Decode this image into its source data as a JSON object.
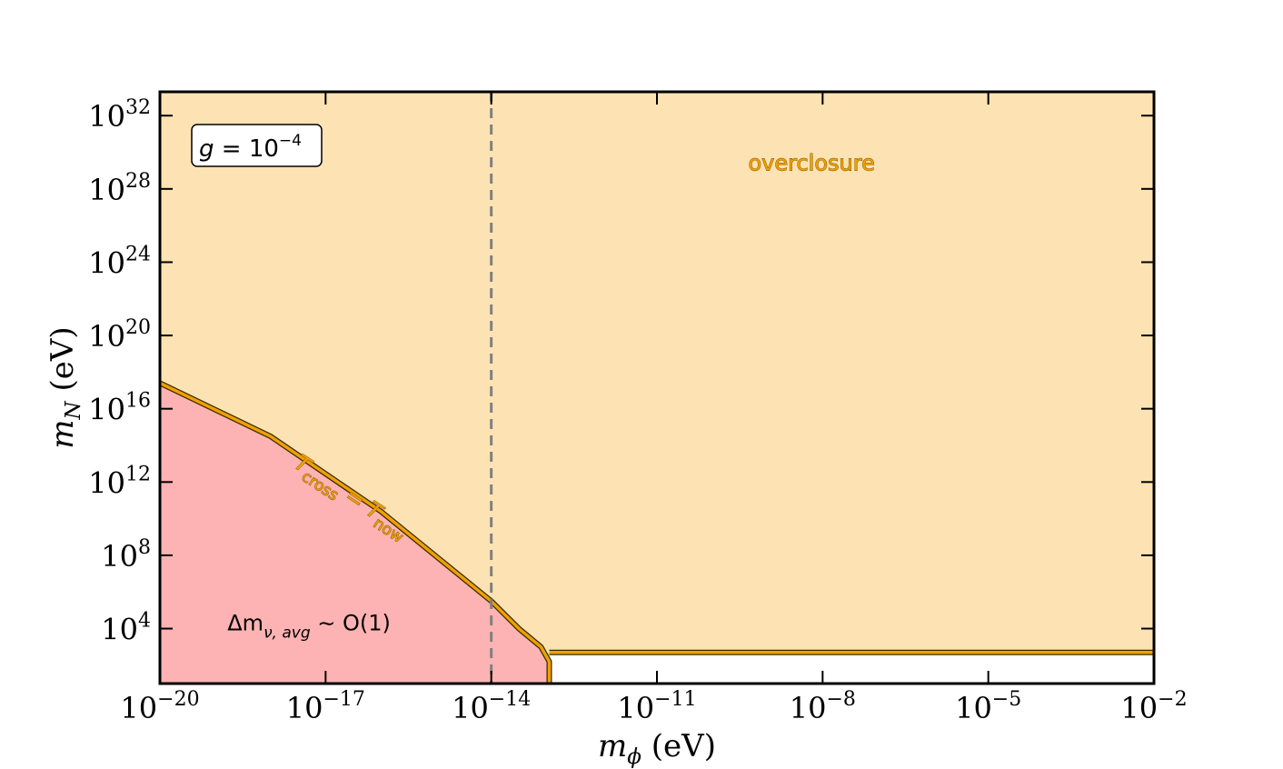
{
  "chart_data": {
    "type": "area",
    "x_scale": "log",
    "y_scale": "log",
    "xlim": [
      "1e-20",
      "1e-2"
    ],
    "ylim": [
      "1e1",
      "1e33.3"
    ],
    "xlabel": {
      "symbol": "m",
      "subscript": "ϕ",
      "unit": "(eV)"
    },
    "ylabel": {
      "symbol": "m",
      "subscript": "N",
      "unit": "(eV)"
    },
    "x_ticks": [
      {
        "base": "10",
        "exp": "−20",
        "value": -20
      },
      {
        "base": "10",
        "exp": "−17",
        "value": -17
      },
      {
        "base": "10",
        "exp": "−14",
        "value": -14
      },
      {
        "base": "10",
        "exp": "−11",
        "value": -11
      },
      {
        "base": "10",
        "exp": "−8",
        "value": -8
      },
      {
        "base": "10",
        "exp": "−5",
        "value": -5
      },
      {
        "base": "10",
        "exp": "−2",
        "value": -2
      }
    ],
    "y_ticks": [
      {
        "base": "10",
        "exp": "4",
        "value": 4
      },
      {
        "base": "10",
        "exp": "8",
        "value": 8
      },
      {
        "base": "10",
        "exp": "12",
        "value": 12
      },
      {
        "base": "10",
        "exp": "16",
        "value": 16
      },
      {
        "base": "10",
        "exp": "20",
        "value": 20
      },
      {
        "base": "10",
        "exp": "24",
        "value": 24
      },
      {
        "base": "10",
        "exp": "28",
        "value": 28
      },
      {
        "base": "10",
        "exp": "32",
        "value": 32
      }
    ],
    "boundary_curve": {
      "name": "T_cross = T_now",
      "color": "#f0a000",
      "log10_points": [
        {
          "x": -20,
          "y": 17.4
        },
        {
          "x": -18,
          "y": 14.5
        },
        {
          "x": -16,
          "y": 10.4
        },
        {
          "x": -14,
          "y": 5.5
        },
        {
          "x": -13.5,
          "y": 4.0
        },
        {
          "x": -13.1,
          "y": 3.0
        },
        {
          "x": -12.95,
          "y": 2.2
        },
        {
          "x": -12.95,
          "y": 1.0
        }
      ],
      "plateau": {
        "x_from": -12.95,
        "x_to": -2,
        "y": 2.7
      }
    },
    "regions": {
      "overclosure": {
        "label": "overclosure",
        "color": "#fde3b3",
        "label_at": {
          "x": -8.2,
          "y": 29
        }
      },
      "delta_m": {
        "label_prefix": "Δm",
        "label_sub": "ν, avg",
        "label_suffix": " ∼ O(1)",
        "color": "#fdb3b3",
        "label_at": {
          "x": -17.3,
          "y": 3.9
        }
      }
    },
    "vertical_line": {
      "x": -14,
      "style": "dashed",
      "color": "#808080"
    },
    "curve_label": {
      "T": "T",
      "sub1": "cross",
      "eq": " = ",
      "sub2": "now",
      "at": {
        "x": -16.6,
        "y": 10.9
      },
      "angle_deg": 33
    },
    "parameter_box": {
      "symbol": "g",
      "eq": " = 10",
      "exp": "−4",
      "position": "top-left"
    },
    "grid": false
  }
}
